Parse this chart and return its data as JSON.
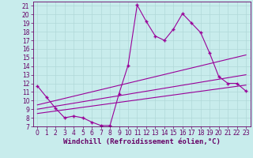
{
  "xlabel": "Windchill (Refroidissement éolien,°C)",
  "background_color": "#c8ecec",
  "grid_color": "#b0d8d8",
  "line_color": "#990099",
  "xlim": [
    -0.5,
    23.5
  ],
  "ylim": [
    7,
    21.5
  ],
  "yticks": [
    7,
    8,
    9,
    10,
    11,
    12,
    13,
    14,
    15,
    16,
    17,
    18,
    19,
    20,
    21
  ],
  "xticks": [
    0,
    1,
    2,
    3,
    4,
    5,
    6,
    7,
    8,
    9,
    10,
    11,
    12,
    13,
    14,
    15,
    16,
    17,
    18,
    19,
    20,
    21,
    22,
    23
  ],
  "line1_x": [
    0,
    1,
    2,
    3,
    4,
    5,
    6,
    7,
    8,
    9,
    10,
    11,
    12,
    13,
    14,
    15,
    16,
    17,
    18,
    19,
    20,
    21,
    22,
    23
  ],
  "line1_y": [
    11.7,
    10.4,
    9.1,
    8.0,
    8.2,
    8.0,
    7.5,
    7.1,
    7.1,
    10.8,
    14.1,
    21.1,
    19.2,
    17.5,
    17.0,
    18.3,
    20.1,
    19.0,
    17.9,
    15.5,
    12.8,
    12.0,
    12.0,
    11.1
  ],
  "line2_x": [
    0,
    23
  ],
  "line2_y": [
    9.5,
    15.3
  ],
  "line3_x": [
    0,
    23
  ],
  "line3_y": [
    9.0,
    13.0
  ],
  "line4_x": [
    0,
    23
  ],
  "line4_y": [
    8.5,
    11.8
  ],
  "font_color": "#660066",
  "tick_fontsize": 5.5,
  "label_fontsize": 6.5
}
